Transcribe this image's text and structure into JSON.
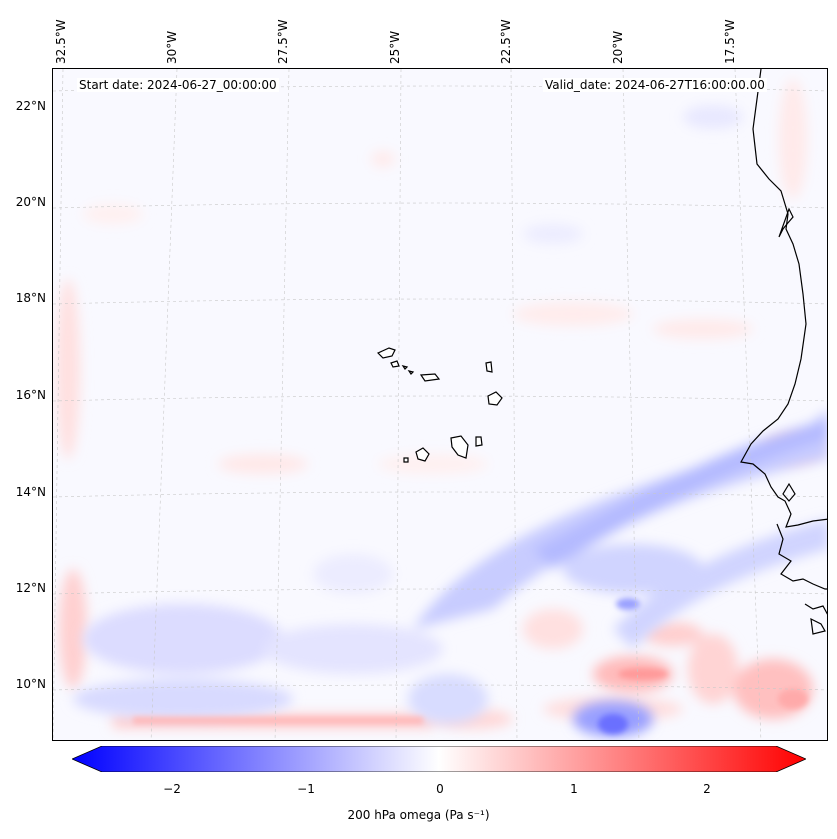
{
  "header": {
    "start_date": "Start date: 2024-06-27_00:00:00",
    "valid_date": "Valid_date: 2024-06-27T16:00:00.00"
  },
  "axes": {
    "longitude_labels": [
      "32.5°W",
      "30°W",
      "27.5°W",
      "25°W",
      "22.5°W",
      "20°W",
      "17.5°W"
    ],
    "latitude_labels": [
      "22°N",
      "20°N",
      "18°N",
      "16°N",
      "14°N",
      "12°N",
      "10°N"
    ]
  },
  "colorbar": {
    "ticks": [
      "−2",
      "−1",
      "0",
      "1",
      "2"
    ],
    "label": "200 hPa omega (Pa s⁻¹)",
    "range": [
      -2.6,
      2.6
    ],
    "colormap": "bwr",
    "extend": "both",
    "colors": {
      "negative": "#0000ff",
      "neutral": "#ffffff",
      "positive": "#ff0000"
    }
  },
  "map": {
    "field": "200 hPa omega",
    "gridlines": true,
    "coastline_color": "#000000",
    "features": [
      "Cape Verde islands",
      "West African coast"
    ]
  }
}
